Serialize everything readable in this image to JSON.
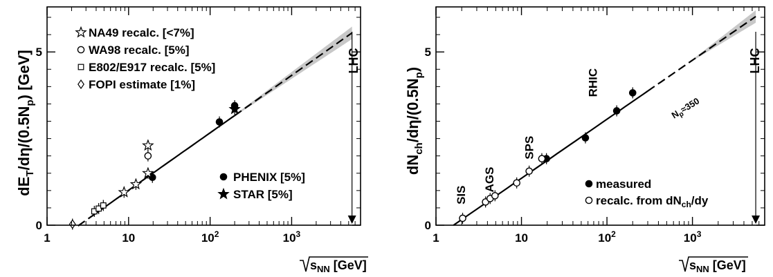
{
  "chart_data": [
    {
      "type": "scatter",
      "x_scale": "log",
      "xlim": [
        1,
        7000
      ],
      "ylim": [
        0,
        6.3
      ],
      "xticks": [
        "1",
        "10",
        "10^2",
        "10^3"
      ],
      "yticks": [
        "0",
        "5"
      ],
      "ylabel": {
        "main": "dE",
        "sub1": "T",
        "mid": "/dη/(0.5N",
        "sub2": "p",
        "tail": ") [GeV]"
      },
      "xlabel": {
        "root": "s",
        "sub": "NN",
        "unit": " [GeV]"
      },
      "legend_upper": [
        {
          "marker": "open-star",
          "label": "NA49 recalc. [<7%]"
        },
        {
          "marker": "open-circle",
          "label": "WA98 recalc. [5%]"
        },
        {
          "marker": "open-square",
          "label": "E802/E917 recalc. [5%]"
        },
        {
          "marker": "open-diamond",
          "label": "FOPI estimate [1%]"
        }
      ],
      "legend_lower": [
        {
          "marker": "filled-circle",
          "label": "PHENIX [5%]"
        },
        {
          "marker": "filled-star",
          "label": "STAR [5%]"
        }
      ],
      "lhc": {
        "label": "LHC",
        "x": 5500
      },
      "fit": {
        "a": -0.65,
        "b": 0.72,
        "x_from": 2.4,
        "x_to": 5500
      },
      "band": {
        "x_from": 200,
        "x_to": 5500
      },
      "series": [
        {
          "marker": "filled-circle",
          "points": [
            {
              "x": 19.6,
              "y": 1.38
            },
            {
              "x": 130,
              "y": 2.98
            },
            {
              "x": 200,
              "y": 3.45
            }
          ]
        },
        {
          "marker": "filled-star",
          "points": [
            {
              "x": 200,
              "y": 3.35
            }
          ]
        },
        {
          "marker": "open-star",
          "points": [
            {
              "x": 8.8,
              "y": 0.95
            },
            {
              "x": 12.3,
              "y": 1.18
            },
            {
              "x": 17.3,
              "y": 1.5
            },
            {
              "x": 17.3,
              "y": 2.3
            }
          ]
        },
        {
          "marker": "open-circle",
          "points": [
            {
              "x": 17.3,
              "y": 2.0
            }
          ]
        },
        {
          "marker": "open-square",
          "points": [
            {
              "x": 3.8,
              "y": 0.4
            },
            {
              "x": 4.3,
              "y": 0.48
            },
            {
              "x": 4.9,
              "y": 0.57
            }
          ]
        },
        {
          "marker": "open-diamond",
          "points": [
            {
              "x": 2.05,
              "y": 0.03
            }
          ]
        }
      ]
    },
    {
      "type": "scatter",
      "x_scale": "log",
      "xlim": [
        1,
        7000
      ],
      "ylim": [
        0,
        6.3
      ],
      "xticks": [
        "1",
        "10",
        "10^2",
        "10^3"
      ],
      "yticks": [
        "0",
        "5"
      ],
      "ylabel": {
        "main": "dN",
        "sub1": "ch",
        "mid": "/dη/(0.5N",
        "sub2": "p",
        "tail": ")"
      },
      "xlabel": {
        "root": "s",
        "sub": "NN",
        "unit": " [GeV]"
      },
      "legend": [
        {
          "marker": "filled-circle",
          "label": "measured"
        },
        {
          "marker": "open-circle",
          "label": "recalc. from dN",
          "sub": "ch",
          "tail": "/dy"
        }
      ],
      "energy_labels": [
        {
          "label": "SIS",
          "x": 1.95,
          "y": 0.6
        },
        {
          "label": "AGS",
          "x": 4.2,
          "y": 0.95
        },
        {
          "label": "SPS",
          "x": 12.3,
          "y": 1.9
        },
        {
          "label": "RHIC",
          "x": 68,
          "y": 3.7
        }
      ],
      "np_note": {
        "main": "N",
        "sub": "p",
        "tail": "≈350"
      },
      "lhc": {
        "label": "LHC",
        "x": 5500
      },
      "fit": {
        "a": -0.35,
        "b": 0.74,
        "x_from": 1.6,
        "x_to": 5500
      },
      "band": {
        "x_from": 1000,
        "x_to": 5500
      },
      "series": [
        {
          "marker": "filled-circle",
          "points": [
            {
              "x": 19.6,
              "y": 1.92
            },
            {
              "x": 56,
              "y": 2.52
            },
            {
              "x": 130,
              "y": 3.3
            },
            {
              "x": 200,
              "y": 3.82
            }
          ]
        },
        {
          "marker": "open-circle",
          "points": [
            {
              "x": 2.05,
              "y": 0.2
            },
            {
              "x": 3.8,
              "y": 0.67
            },
            {
              "x": 4.3,
              "y": 0.77
            },
            {
              "x": 4.9,
              "y": 0.85
            },
            {
              "x": 8.8,
              "y": 1.22
            },
            {
              "x": 12.3,
              "y": 1.56
            },
            {
              "x": 17.3,
              "y": 1.92
            }
          ]
        }
      ]
    }
  ]
}
